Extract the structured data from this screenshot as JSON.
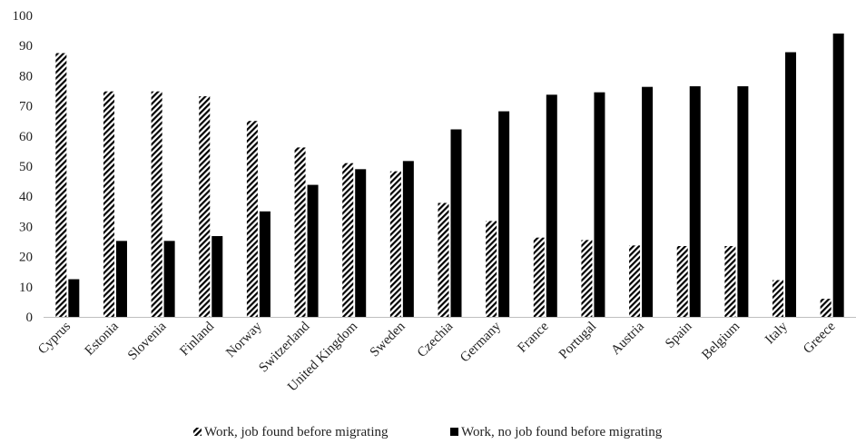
{
  "chart_data": {
    "type": "bar",
    "title": "",
    "xlabel": "",
    "ylabel": "",
    "ylim": [
      0,
      100
    ],
    "yticks": [
      0,
      10,
      20,
      30,
      40,
      50,
      60,
      70,
      80,
      90,
      100
    ],
    "grid": false,
    "legend_position": "bottom",
    "categories": [
      "Cyprus",
      "Estonia",
      "Slovenia",
      "Finland",
      "Norway",
      "Switzerland",
      "United Kingdom",
      "Sweden",
      "Czechia",
      "Germany",
      "France",
      "Portugal",
      "Austria",
      "Spain",
      "Belgium",
      "Italy",
      "Greece"
    ],
    "series": [
      {
        "name": "Work, job found before migrating",
        "pattern": "diagonal-hatch",
        "color": "#000000",
        "values": [
          87.5,
          74.8,
          74.8,
          73.2,
          65.0,
          56.2,
          51.0,
          48.3,
          37.8,
          31.8,
          26.3,
          25.5,
          23.7,
          23.5,
          23.5,
          12.2,
          6.0
        ]
      },
      {
        "name": "Work, no job found before migrating",
        "pattern": "solid",
        "color": "#000000",
        "values": [
          12.5,
          25.2,
          25.2,
          26.8,
          35.0,
          43.8,
          49.0,
          51.7,
          62.2,
          68.2,
          73.7,
          74.5,
          76.3,
          76.5,
          76.5,
          87.8,
          94.0
        ]
      }
    ]
  }
}
